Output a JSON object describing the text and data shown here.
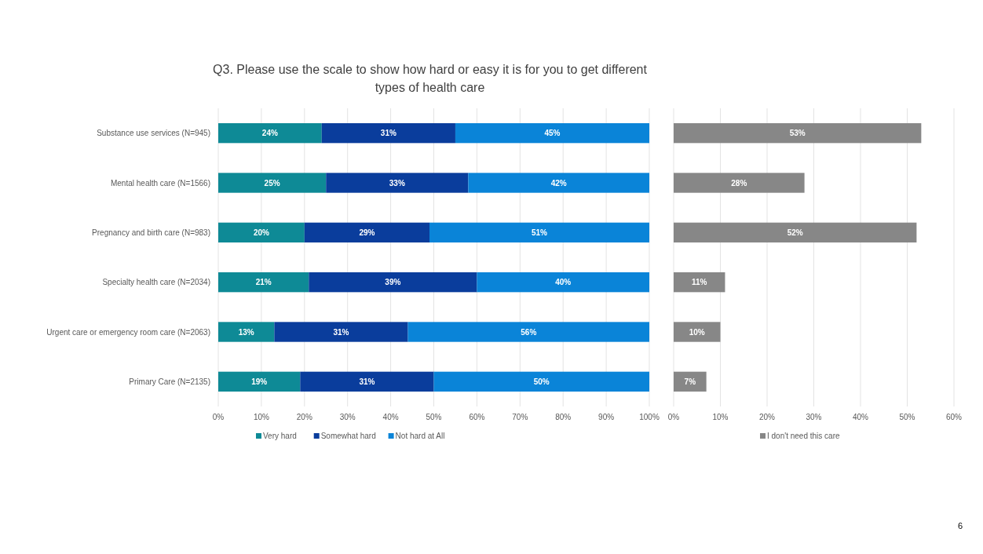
{
  "chart_data": [
    {
      "type": "bar",
      "orientation": "horizontal",
      "stacked": true,
      "title": "Q3. Please use the scale to show how hard or easy it is for you to get different types of health care",
      "categories": [
        "Substance use services (N=945)",
        "Mental health care (N=1566)",
        "Pregnancy and birth care (N=983)",
        "Specialty health care (N=2034)",
        "Urgent care or emergency room care (N=2063)",
        "Primary Care (N=2135)"
      ],
      "series": [
        {
          "name": "Very hard",
          "color": "#0e8a96",
          "values": [
            24,
            25,
            20,
            21,
            13,
            19
          ],
          "value_labels": [
            "24%",
            "25%",
            "20%",
            "21%",
            "13%",
            "19%"
          ]
        },
        {
          "name": "Somewhat hard",
          "color": "#0a3d9c",
          "values": [
            31,
            33,
            29,
            39,
            31,
            31
          ],
          "value_labels": [
            "31%",
            "33%",
            "29%",
            "39%",
            "31%",
            "31%"
          ]
        },
        {
          "name": "Not hard at All",
          "color": "#0a84d8",
          "values": [
            45,
            42,
            51,
            40,
            56,
            50
          ],
          "value_labels": [
            "45%",
            "42%",
            "51%",
            "40%",
            "56%",
            "50%"
          ]
        }
      ],
      "xlim": [
        0,
        100
      ],
      "xticks": [
        {
          "value": 0,
          "label": "0%"
        },
        {
          "value": 10,
          "label": "10%"
        },
        {
          "value": 20,
          "label": "20%"
        },
        {
          "value": 30,
          "label": "30%"
        },
        {
          "value": 40,
          "label": "40%"
        },
        {
          "value": 50,
          "label": "50%"
        },
        {
          "value": 60,
          "label": "60%"
        },
        {
          "value": 70,
          "label": "70%"
        },
        {
          "value": 80,
          "label": "80%"
        },
        {
          "value": 90,
          "label": "90%"
        },
        {
          "value": 100,
          "label": "100%"
        }
      ],
      "grid": "x",
      "legend": "bottom",
      "annotations": [
        "6"
      ]
    },
    {
      "type": "bar",
      "orientation": "horizontal",
      "categories": [
        null,
        null,
        null,
        null,
        null,
        null
      ],
      "series": [
        {
          "name": "I don't need this care",
          "color": "#878787",
          "values": [
            53,
            28,
            52,
            11,
            10,
            7
          ],
          "value_labels": [
            "53%",
            "28%",
            "52%",
            "11%",
            "10%",
            "7%"
          ]
        }
      ],
      "xlim": [
        0,
        60
      ],
      "xticks": [
        {
          "value": 0,
          "label": "0%"
        },
        {
          "value": 10,
          "label": "10%"
        },
        {
          "value": 20,
          "label": "20%"
        },
        {
          "value": 30,
          "label": "30%"
        },
        {
          "value": 40,
          "label": "40%"
        },
        {
          "value": 50,
          "label": "50%"
        },
        {
          "value": 60,
          "label": "60%"
        }
      ],
      "grid": "x",
      "legend": "bottom",
      "tick_labels": "x"
    }
  ]
}
